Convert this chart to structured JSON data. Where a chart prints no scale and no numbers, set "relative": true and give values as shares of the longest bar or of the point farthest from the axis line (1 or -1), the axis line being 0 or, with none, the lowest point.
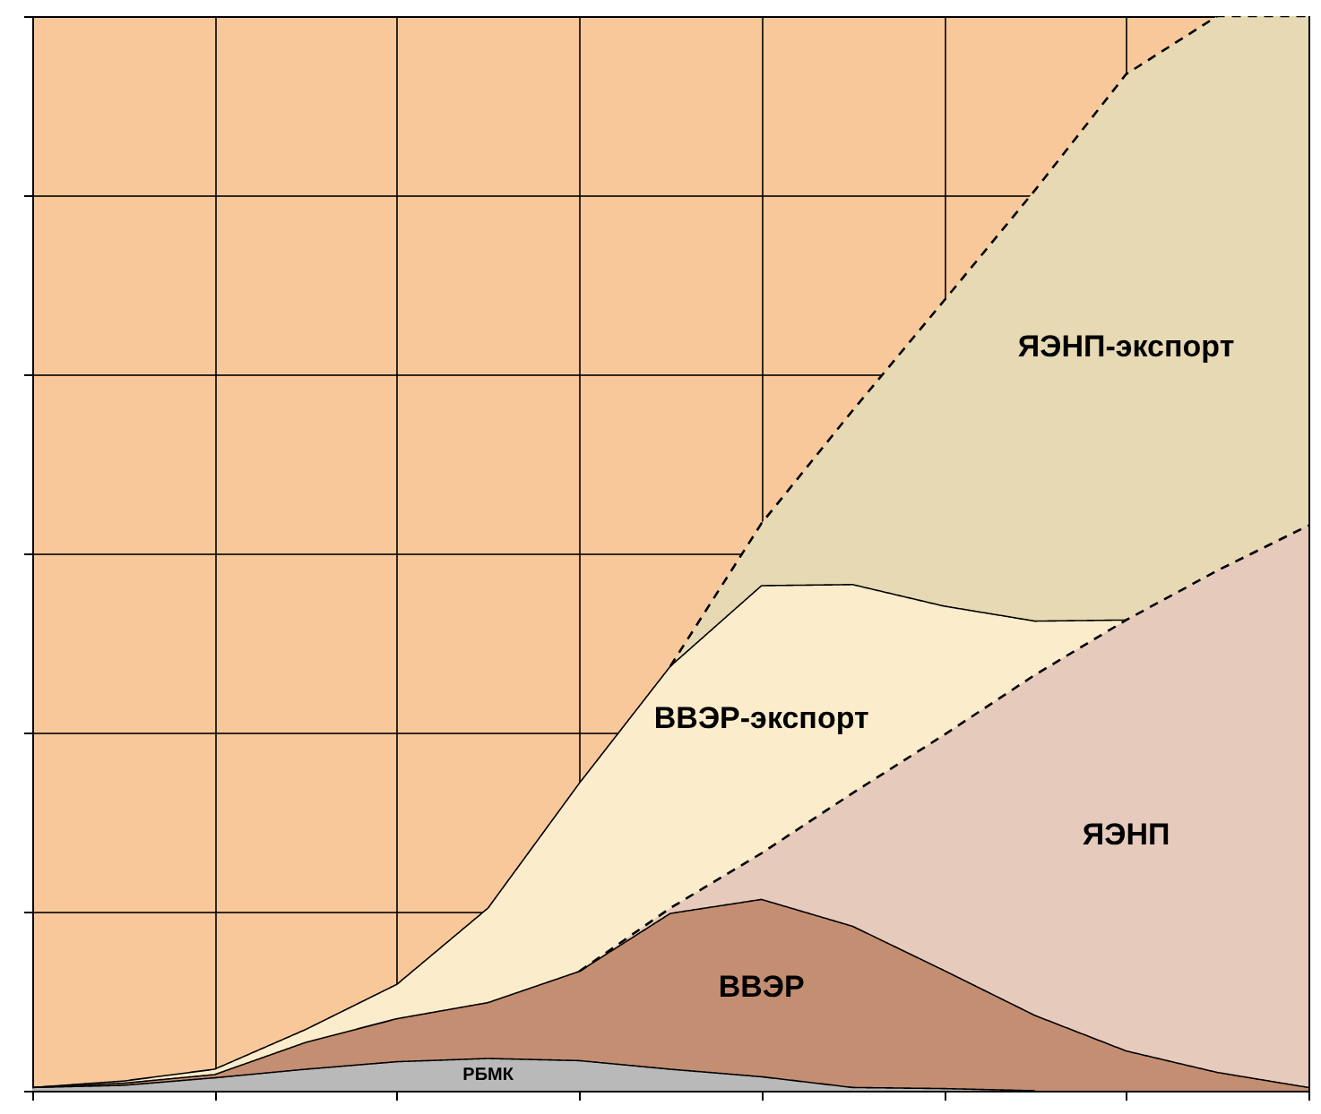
{
  "chart_data": {
    "type": "area",
    "stacked": true,
    "relative": true,
    "grid": true,
    "legend": false,
    "categories": [
      null,
      null,
      null,
      null,
      null,
      null,
      null,
      null,
      null,
      null,
      null,
      null,
      null,
      null,
      null
    ],
    "series": [
      {
        "name": "РБМК",
        "color": "#b9b9b9",
        "line_style": "solid",
        "values": [
          0.003,
          0.005,
          0.012,
          0.02,
          0.027,
          0.03,
          0.028,
          0.02,
          0.013,
          0.003,
          0.002,
          0,
          null,
          null,
          null
        ]
      },
      {
        "name": "ВВЭР",
        "color": "#c48e72",
        "line_style": "solid",
        "values": [
          0,
          0.002,
          0.003,
          0.025,
          0.04,
          0.052,
          0.083,
          0.145,
          0.165,
          0.15,
          0.11,
          0.07,
          0.037,
          0.017,
          0.003
        ]
      },
      {
        "name": "ЯЭНП",
        "color": "#e6cbbd",
        "line_style": "dashed",
        "values": [
          null,
          null,
          null,
          null,
          null,
          null,
          0,
          0.005,
          0.043,
          0.124,
          0.219,
          0.317,
          0.401,
          0.467,
          0.523
        ]
      },
      {
        "name": "ВВЭР-экспорт",
        "color": "#fbeccb",
        "line_style": "solid",
        "values": [
          0,
          0.002,
          0.005,
          0.012,
          0.032,
          0.088,
          0.175,
          0.225,
          0.249,
          0.194,
          0.12,
          0.05,
          0,
          null,
          null
        ]
      },
      {
        "name": "ЯЭНП-экспорт",
        "color": "#e6d9b4",
        "line_style": "dashed",
        "values": [
          null,
          null,
          null,
          null,
          null,
          null,
          null,
          0,
          0.058,
          0.162,
          0.284,
          0.401,
          0.508,
          0.516,
          0.474
        ]
      }
    ]
  }
}
